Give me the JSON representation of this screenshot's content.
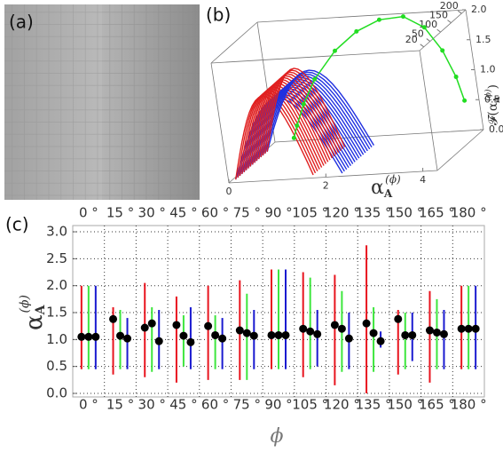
{
  "chart_data": [
    {
      "type": "line3d",
      "panel_label": "(b)",
      "xlabel": {
        "symbol": "α",
        "sub": "A",
        "sup": "(ϕ)"
      },
      "zlabel": {
        "func": "𝓕(",
        "symbol": "α",
        "sub": "A",
        "sup": "(ϕ)",
        "close": ")"
      },
      "xlim": [
        0,
        4.3
      ],
      "xticks": [
        0,
        2,
        4
      ],
      "zlim": [
        0,
        2
      ],
      "zticks": [
        {
          "value": 0,
          "label": "0.0"
        },
        {
          "value": 0.5,
          "label": "0.5"
        },
        {
          "value": 1,
          "label": "1.0"
        },
        {
          "value": 1.5,
          "label": "1.5"
        },
        {
          "value": 2,
          "label": "2.0"
        }
      ],
      "depthlim": [
        0,
        220
      ],
      "depthticks": [
        20,
        50,
        100,
        150,
        200
      ],
      "series": [
        {
          "color": "#22dd22",
          "depth": 220,
          "x": [
            0.4,
            0.5,
            0.7,
            1.0,
            1.5,
            2.0,
            2.5,
            3.0,
            3.4,
            3.7,
            3.9,
            4.0
          ],
          "values": [
            0.05,
            0.25,
            0.6,
            1.0,
            1.45,
            1.75,
            1.92,
            1.95,
            1.75,
            1.35,
            0.9,
            0.5
          ]
        }
      ]
    },
    {
      "type": "errorbar",
      "panel_label": "(c)",
      "ylabel": {
        "symbol": "α",
        "sub": "A",
        "sup": "(ϕ)"
      },
      "xlabel": "ϕ",
      "categories": [
        "0 °",
        "15 °",
        "30 °",
        "45 °",
        "60 °",
        "75 °",
        "90 °",
        "105 °",
        "120 °",
        "135 °",
        "150 °",
        "165 °",
        "180 °"
      ],
      "ylim": [
        0,
        3.05
      ],
      "yticks": [
        {
          "value": 0,
          "label": "0.0"
        },
        {
          "value": 0.5,
          "label": "0.5"
        },
        {
          "value": 1,
          "label": "1.0"
        },
        {
          "value": 1.5,
          "label": "1.5"
        },
        {
          "value": 2,
          "label": "2.0"
        },
        {
          "value": 2.5,
          "label": "2.5"
        },
        {
          "value": 3,
          "label": "3.0"
        }
      ],
      "grid": true,
      "marker_color": "#000000",
      "series": [
        {
          "color": "#e8141e",
          "values": [
            1.05,
            1.38,
            1.22,
            1.27,
            1.25,
            1.17,
            1.08,
            1.2,
            1.27,
            1.3,
            1.38,
            1.17,
            1.2
          ],
          "lows": [
            0.45,
            0.35,
            0.3,
            0.2,
            0.25,
            0.25,
            0.45,
            0.3,
            0.15,
            0.0,
            0.35,
            0.2,
            0.45
          ],
          "highs": [
            2.0,
            1.6,
            2.05,
            1.8,
            2.0,
            2.1,
            2.3,
            2.25,
            2.2,
            2.75,
            1.55,
            1.9,
            2.0
          ]
        },
        {
          "color": "#3ee63e",
          "values": [
            1.05,
            1.07,
            1.3,
            1.07,
            1.08,
            1.12,
            1.08,
            1.15,
            1.2,
            1.12,
            1.08,
            1.13,
            1.2
          ],
          "lows": [
            0.45,
            0.45,
            0.4,
            0.5,
            0.45,
            0.25,
            0.45,
            0.45,
            0.4,
            0.4,
            0.45,
            0.45,
            0.45
          ],
          "highs": [
            2.0,
            1.55,
            1.6,
            1.45,
            1.45,
            1.85,
            2.3,
            2.15,
            1.9,
            1.6,
            1.5,
            1.75,
            2.0
          ]
        },
        {
          "color": "#1a1ad0",
          "values": [
            1.05,
            1.02,
            0.97,
            0.95,
            1.02,
            1.07,
            1.08,
            1.1,
            1.02,
            0.97,
            1.08,
            1.1,
            1.2
          ],
          "lows": [
            0.45,
            0.45,
            0.45,
            0.45,
            0.45,
            0.45,
            0.45,
            0.5,
            0.45,
            0.85,
            0.6,
            0.45,
            0.45
          ],
          "highs": [
            2.0,
            1.4,
            1.55,
            1.6,
            1.4,
            1.55,
            2.3,
            1.55,
            1.5,
            1.15,
            1.5,
            1.55,
            2.0
          ]
        }
      ]
    },
    {
      "type": "image",
      "panel_label": "(a)"
    }
  ]
}
